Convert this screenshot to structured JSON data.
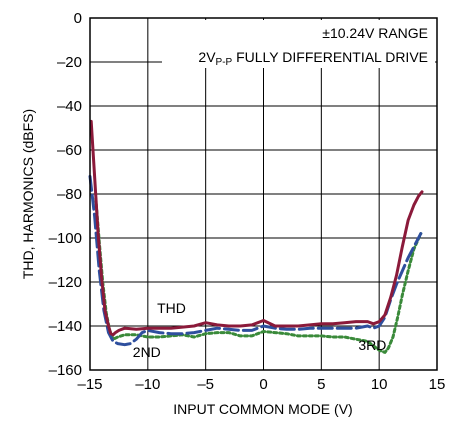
{
  "chart_data": {
    "type": "line",
    "xlabel": "INPUT COMMON MODE (V)",
    "ylabel": "THD, HARMONICS (dBFS)",
    "xlim": [
      -15,
      15
    ],
    "ylim": [
      -160,
      0
    ],
    "xticks": [
      "–15",
      "–10",
      "–5",
      "0",
      "5",
      "10",
      "15"
    ],
    "yticks": [
      "0",
      "–20",
      "–40",
      "–60",
      "–80",
      "–100",
      "–120",
      "–140",
      "–160"
    ],
    "grid": true,
    "annotations": {
      "range": "±10.24V RANGE",
      "drive_pre": "2V",
      "drive_sub": "P-P",
      "drive_post": " FULLY DIFFERENTIAL DRIVE"
    },
    "series": [
      {
        "name": "THD",
        "color": "#8b1a3a",
        "style": "solid",
        "x": [
          -14.9,
          -14.6,
          -14.3,
          -14.0,
          -13.7,
          -13.4,
          -13.2,
          -13.0,
          -12.8,
          -12.5,
          -12.0,
          -11.0,
          -10.0,
          -9.0,
          -8.0,
          -7.0,
          -6.0,
          -5.0,
          -4.0,
          -3.0,
          -2.0,
          -1.0,
          0.0,
          1.0,
          2.0,
          3.0,
          4.0,
          5.0,
          6.0,
          7.0,
          8.0,
          9.0,
          9.5,
          10.0,
          10.5,
          11.0,
          11.5,
          12.0,
          12.5,
          13.0,
          13.4,
          13.7
        ],
        "y": [
          -47,
          -72,
          -98,
          -118,
          -133,
          -140,
          -143.5,
          -144,
          -143,
          -142,
          -141,
          -141.5,
          -141,
          -141,
          -141,
          -140.5,
          -140,
          -138.5,
          -139.5,
          -140,
          -140,
          -139.5,
          -137.5,
          -140,
          -140,
          -140,
          -139.5,
          -139,
          -139,
          -138.5,
          -138,
          -138,
          -139,
          -138,
          -135,
          -127,
          -117,
          -104,
          -92,
          -85,
          -81,
          -79
        ]
      },
      {
        "name": "2ND",
        "color": "#2e4f9e",
        "style": "dashed",
        "x": [
          -15.0,
          -14.6,
          -14.2,
          -13.8,
          -13.4,
          -13.0,
          -12.6,
          -12.0,
          -11.5,
          -11.0,
          -10.5,
          -10.0,
          -9.0,
          -8.0,
          -7.0,
          -6.0,
          -5.0,
          -4.0,
          -3.0,
          -2.0,
          -1.0,
          0.0,
          1.0,
          2.0,
          3.0,
          4.0,
          5.0,
          6.0,
          7.0,
          8.0,
          9.0,
          9.5,
          10.0,
          10.5,
          11.0,
          11.5,
          12.0,
          12.5,
          13.0,
          13.6
        ],
        "y": [
          -72,
          -90,
          -115,
          -133,
          -143,
          -147,
          -148,
          -148.5,
          -148,
          -146,
          -143,
          -142,
          -143,
          -143.5,
          -143.5,
          -143,
          -142,
          -141,
          -141.5,
          -142,
          -142,
          -140,
          -141,
          -141.5,
          -141.5,
          -141,
          -141,
          -141,
          -141,
          -141,
          -140,
          -141,
          -140,
          -136,
          -128,
          -121,
          -115,
          -109,
          -104,
          -98
        ]
      },
      {
        "name": "3RD",
        "color": "#3a8a3a",
        "style": "dotted",
        "x": [
          -14.5,
          -14.2,
          -13.9,
          -13.6,
          -13.3,
          -13.0,
          -12.6,
          -12.0,
          -11.0,
          -10.0,
          -9.0,
          -8.0,
          -7.0,
          -6.0,
          -5.0,
          -4.0,
          -3.0,
          -2.0,
          -1.0,
          0.0,
          1.0,
          2.0,
          3.0,
          4.0,
          5.0,
          6.0,
          7.0,
          8.0,
          9.0,
          9.5,
          10.0,
          10.5,
          10.8,
          11.2,
          11.6,
          12.0,
          12.5,
          13.0,
          13.6
        ],
        "y": [
          -82,
          -102,
          -120,
          -134,
          -142,
          -146,
          -145,
          -144,
          -144,
          -145,
          -145,
          -144.5,
          -144,
          -145,
          -143.5,
          -143,
          -143,
          -144.5,
          -144.5,
          -142.5,
          -143,
          -143.5,
          -144.5,
          -144.5,
          -144.5,
          -145,
          -145,
          -146,
          -147,
          -149,
          -151,
          -152,
          -150,
          -145,
          -136,
          -126,
          -115,
          -105,
          -98
        ]
      }
    ],
    "labels": [
      {
        "text": "THD",
        "x": -9.2,
        "y": -134
      },
      {
        "text": "2ND",
        "x": -11.3,
        "y": -154
      },
      {
        "text": "3RD",
        "x": 8.2,
        "y": -151
      }
    ]
  }
}
